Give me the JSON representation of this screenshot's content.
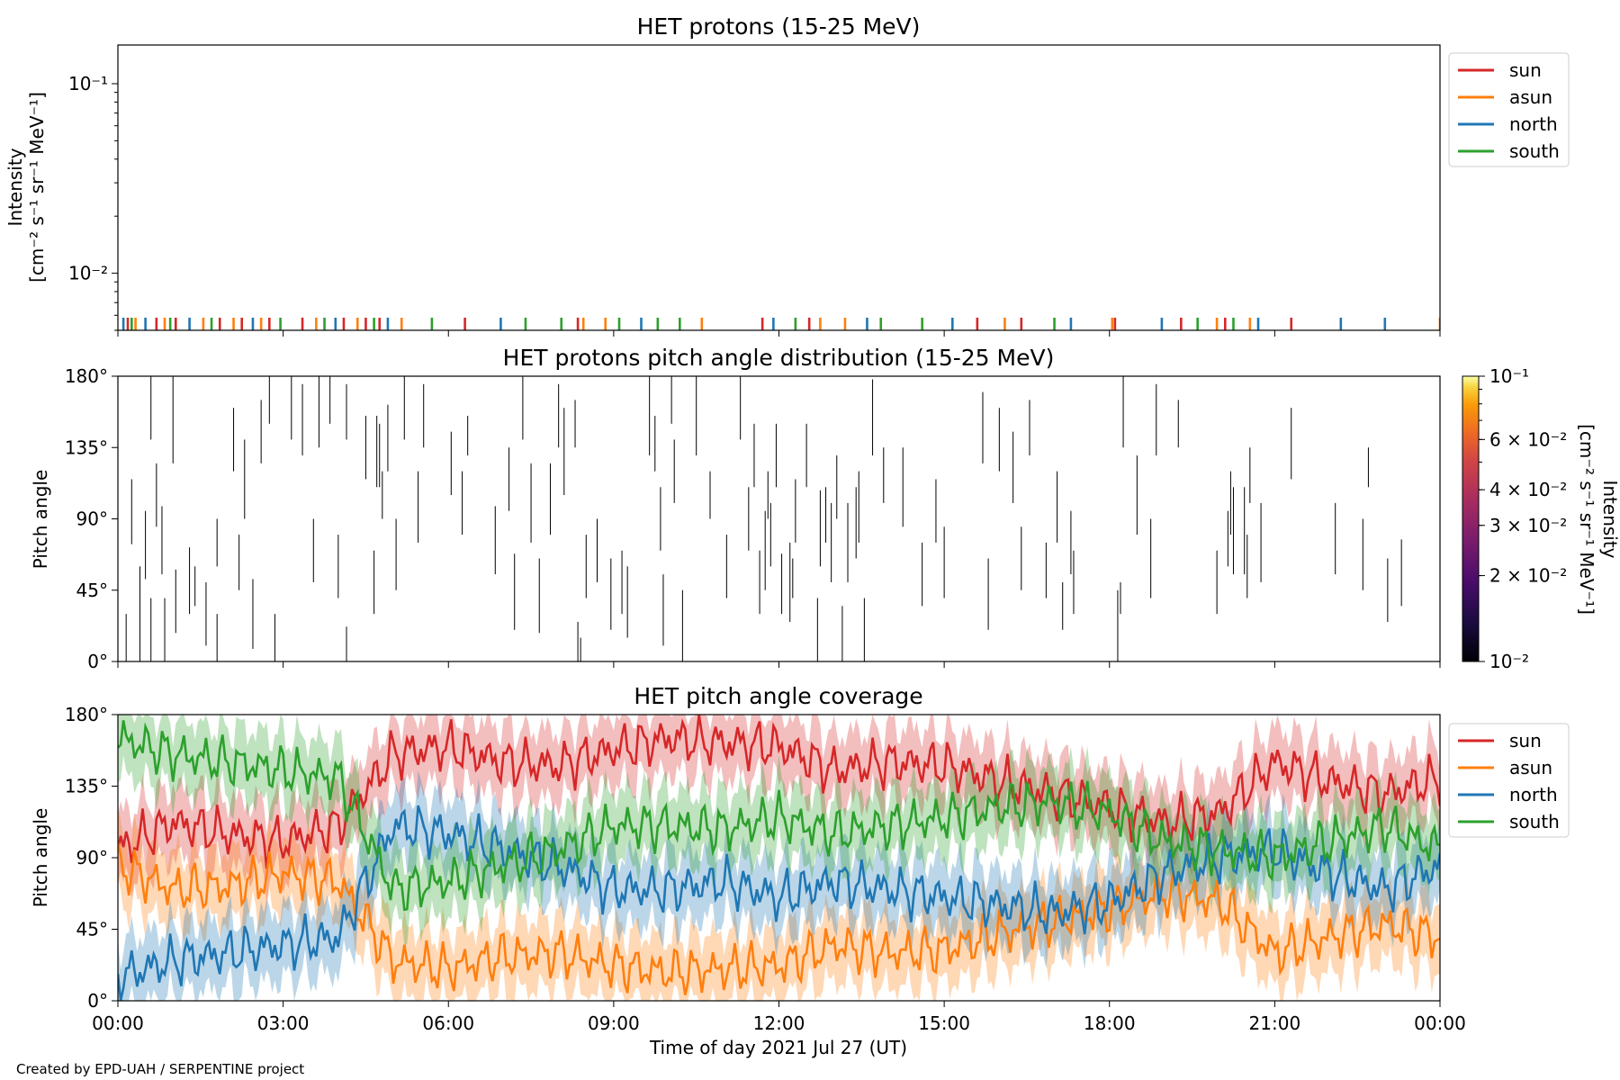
{
  "colors": {
    "sun": "#d62728",
    "asun": "#ff7f0e",
    "north": "#1f77b4",
    "south": "#2ca02c"
  },
  "credit": "Created by EPD-UAH / SERPENTINE project",
  "x_axis": {
    "label": "Time of day 2021 Jul 27 (UT)",
    "ticks": [
      "00:00",
      "03:00",
      "06:00",
      "09:00",
      "12:00",
      "15:00",
      "18:00",
      "21:00",
      "00:00"
    ],
    "range_hours": [
      0,
      24
    ]
  },
  "legend_labels": [
    "sun",
    "asun",
    "north",
    "south"
  ],
  "chart_data": [
    {
      "type": "line",
      "title": "HET protons (15-25 MeV)",
      "ylabel_line1": "Intensity",
      "ylabel_line2": "[cm⁻² s⁻¹ sr⁻¹ MeV⁻¹]",
      "yscale": "log",
      "ylim": [
        0.005,
        0.16
      ],
      "ytick_labels": [
        "10⁻¹",
        "10⁻²"
      ],
      "ytick_values": [
        0.1,
        0.01
      ],
      "legend": "top-right outside",
      "series": [
        {
          "name": "sun",
          "x_hours": [
            0.18,
            0.7,
            1.05,
            1.85,
            2.25,
            2.75,
            3.35,
            4.1,
            4.5,
            4.75,
            6.3,
            8.35,
            11.7,
            12.55,
            15.6,
            16.4,
            18.1,
            19.3,
            20.1,
            21.3
          ]
        },
        {
          "name": "asun",
          "x_hours": [
            0.32,
            0.85,
            1.55,
            2.1,
            2.6,
            3.6,
            4.35,
            5.15,
            8.45,
            8.85,
            10.6,
            12.75,
            13.2,
            16.1,
            18.05,
            19.95,
            20.55,
            24.0
          ]
        },
        {
          "name": "north",
          "x_hours": [
            0.1,
            0.5,
            1.3,
            2.45,
            3.95,
            4.9,
            6.95,
            9.5,
            11.9,
            13.6,
            15.15,
            17.3,
            18.95,
            20.7,
            22.2,
            23.0
          ]
        },
        {
          "name": "south",
          "x_hours": [
            0.25,
            0.95,
            1.7,
            2.95,
            3.75,
            4.65,
            5.7,
            7.4,
            8.05,
            9.1,
            9.8,
            10.2,
            12.3,
            13.85,
            14.6,
            17.0,
            19.6,
            20.25
          ]
        }
      ],
      "y_values_note": "all marks near 0.0055"
    },
    {
      "type": "heatmap",
      "title": "HET protons pitch angle distribution (15-25 MeV)",
      "ylabel": "Pitch angle",
      "ylim": [
        0,
        180
      ],
      "ytick_labels": [
        "180°",
        "135°",
        "90°",
        "45°",
        "0°"
      ],
      "ytick_values": [
        180,
        135,
        90,
        45,
        0
      ],
      "colorbar": {
        "label_line1": "Intensity",
        "label_line2": "[cm⁻² s⁻¹ sr⁻¹ MeV⁻¹]",
        "scale": "log",
        "range": [
          0.01,
          0.1
        ],
        "tick_labels": [
          "10⁻¹",
          "6 × 10⁻²",
          "4 × 10⁻²",
          "3 × 10⁻²",
          "2 × 10⁻²",
          "10⁻²"
        ],
        "tick_values": [
          0.1,
          0.06,
          0.04,
          0.03,
          0.02,
          0.01
        ],
        "colormap": "inferno"
      },
      "segments": [
        {
          "x": 0.15,
          "y0": 0,
          "y1": 30
        },
        {
          "x": 0.25,
          "y0": 74,
          "y1": 115
        },
        {
          "x": 0.4,
          "y0": 0,
          "y1": 60
        },
        {
          "x": 0.5,
          "y0": 52,
          "y1": 95
        },
        {
          "x": 0.6,
          "y0": 140,
          "y1": 180
        },
        {
          "x": 0.6,
          "y0": 0,
          "y1": 40
        },
        {
          "x": 0.7,
          "y0": 85,
          "y1": 125
        },
        {
          "x": 0.8,
          "y0": 55,
          "y1": 98
        },
        {
          "x": 0.85,
          "y0": 0,
          "y1": 40
        },
        {
          "x": 1.0,
          "y0": 125,
          "y1": 180
        },
        {
          "x": 1.05,
          "y0": 18,
          "y1": 58
        },
        {
          "x": 1.3,
          "y0": 30,
          "y1": 72
        },
        {
          "x": 1.4,
          "y0": 35,
          "y1": 60
        },
        {
          "x": 1.6,
          "y0": 10,
          "y1": 50
        },
        {
          "x": 1.8,
          "y0": 60,
          "y1": 90
        },
        {
          "x": 1.8,
          "y0": 0,
          "y1": 30
        },
        {
          "x": 2.1,
          "y0": 120,
          "y1": 160
        },
        {
          "x": 2.2,
          "y0": 45,
          "y1": 80
        },
        {
          "x": 2.3,
          "y0": 90,
          "y1": 140
        },
        {
          "x": 2.45,
          "y0": 8,
          "y1": 52
        },
        {
          "x": 2.6,
          "y0": 125,
          "y1": 165
        },
        {
          "x": 2.75,
          "y0": 150,
          "y1": 180
        },
        {
          "x": 2.85,
          "y0": 0,
          "y1": 30
        },
        {
          "x": 3.15,
          "y0": 140,
          "y1": 180
        },
        {
          "x": 3.35,
          "y0": 130,
          "y1": 175
        },
        {
          "x": 3.55,
          "y0": 50,
          "y1": 90
        },
        {
          "x": 3.65,
          "y0": 135,
          "y1": 180
        },
        {
          "x": 3.85,
          "y0": 150,
          "y1": 180
        },
        {
          "x": 4.0,
          "y0": 40,
          "y1": 80
        },
        {
          "x": 4.15,
          "y0": 0,
          "y1": 22
        },
        {
          "x": 4.15,
          "y0": 140,
          "y1": 175
        },
        {
          "x": 4.5,
          "y0": 115,
          "y1": 155
        },
        {
          "x": 4.65,
          "y0": 30,
          "y1": 70
        },
        {
          "x": 4.7,
          "y0": 110,
          "y1": 155
        },
        {
          "x": 4.75,
          "y0": 110,
          "y1": 150
        },
        {
          "x": 4.8,
          "y0": 90,
          "y1": 120
        },
        {
          "x": 4.9,
          "y0": 120,
          "y1": 162
        },
        {
          "x": 5.05,
          "y0": 45,
          "y1": 90
        },
        {
          "x": 5.2,
          "y0": 140,
          "y1": 180
        },
        {
          "x": 5.45,
          "y0": 75,
          "y1": 120
        },
        {
          "x": 5.55,
          "y0": 135,
          "y1": 175
        },
        {
          "x": 6.05,
          "y0": 105,
          "y1": 145
        },
        {
          "x": 6.25,
          "y0": 80,
          "y1": 120
        },
        {
          "x": 6.35,
          "y0": 130,
          "y1": 155
        },
        {
          "x": 6.85,
          "y0": 55,
          "y1": 98
        },
        {
          "x": 7.1,
          "y0": 95,
          "y1": 135
        },
        {
          "x": 7.2,
          "y0": 20,
          "y1": 68
        },
        {
          "x": 7.35,
          "y0": 140,
          "y1": 180
        },
        {
          "x": 7.5,
          "y0": 75,
          "y1": 125
        },
        {
          "x": 7.65,
          "y0": 18,
          "y1": 65
        },
        {
          "x": 7.85,
          "y0": 80,
          "y1": 125
        },
        {
          "x": 8.0,
          "y0": 135,
          "y1": 175
        },
        {
          "x": 8.1,
          "y0": 105,
          "y1": 160
        },
        {
          "x": 8.3,
          "y0": 135,
          "y1": 165
        },
        {
          "x": 8.35,
          "y0": 0,
          "y1": 25
        },
        {
          "x": 8.4,
          "y0": 0,
          "y1": 15
        },
        {
          "x": 8.5,
          "y0": 40,
          "y1": 80
        },
        {
          "x": 8.7,
          "y0": 50,
          "y1": 90
        },
        {
          "x": 8.95,
          "y0": 20,
          "y1": 65
        },
        {
          "x": 9.15,
          "y0": 30,
          "y1": 70
        },
        {
          "x": 9.25,
          "y0": 15,
          "y1": 60
        },
        {
          "x": 9.65,
          "y0": 130,
          "y1": 180
        },
        {
          "x": 9.75,
          "y0": 120,
          "y1": 155
        },
        {
          "x": 9.85,
          "y0": 70,
          "y1": 110
        },
        {
          "x": 9.9,
          "y0": 10,
          "y1": 55
        },
        {
          "x": 10.05,
          "y0": 150,
          "y1": 180
        },
        {
          "x": 10.1,
          "y0": 100,
          "y1": 140
        },
        {
          "x": 10.25,
          "y0": 0,
          "y1": 45
        },
        {
          "x": 10.5,
          "y0": 130,
          "y1": 180
        },
        {
          "x": 10.75,
          "y0": 90,
          "y1": 120
        },
        {
          "x": 11.05,
          "y0": 40,
          "y1": 80
        },
        {
          "x": 11.3,
          "y0": 140,
          "y1": 180
        },
        {
          "x": 11.45,
          "y0": 70,
          "y1": 110
        },
        {
          "x": 11.55,
          "y0": 110,
          "y1": 150
        },
        {
          "x": 11.65,
          "y0": 30,
          "y1": 70
        },
        {
          "x": 11.75,
          "y0": 45,
          "y1": 95
        },
        {
          "x": 11.8,
          "y0": 90,
          "y1": 120
        },
        {
          "x": 11.85,
          "y0": 60,
          "y1": 100
        },
        {
          "x": 11.95,
          "y0": 110,
          "y1": 150
        },
        {
          "x": 12.05,
          "y0": 30,
          "y1": 68
        },
        {
          "x": 12.2,
          "y0": 25,
          "y1": 75
        },
        {
          "x": 12.25,
          "y0": 40,
          "y1": 65
        },
        {
          "x": 12.3,
          "y0": 75,
          "y1": 115
        },
        {
          "x": 12.5,
          "y0": 110,
          "y1": 150
        },
        {
          "x": 12.7,
          "y0": 0,
          "y1": 40
        },
        {
          "x": 12.75,
          "y0": 60,
          "y1": 108
        },
        {
          "x": 12.85,
          "y0": 75,
          "y1": 110
        },
        {
          "x": 12.95,
          "y0": 50,
          "y1": 100
        },
        {
          "x": 13.05,
          "y0": 90,
          "y1": 130
        },
        {
          "x": 13.15,
          "y0": 0,
          "y1": 35
        },
        {
          "x": 13.25,
          "y0": 50,
          "y1": 100
        },
        {
          "x": 13.4,
          "y0": 65,
          "y1": 110
        },
        {
          "x": 13.45,
          "y0": 75,
          "y1": 120
        },
        {
          "x": 13.55,
          "y0": 0,
          "y1": 40
        },
        {
          "x": 13.7,
          "y0": 130,
          "y1": 178
        },
        {
          "x": 13.9,
          "y0": 100,
          "y1": 135
        },
        {
          "x": 14.25,
          "y0": 85,
          "y1": 135
        },
        {
          "x": 14.6,
          "y0": 35,
          "y1": 75
        },
        {
          "x": 14.85,
          "y0": 75,
          "y1": 115
        },
        {
          "x": 15.0,
          "y0": 40,
          "y1": 85
        },
        {
          "x": 15.7,
          "y0": 125,
          "y1": 170
        },
        {
          "x": 15.8,
          "y0": 20,
          "y1": 65
        },
        {
          "x": 16.0,
          "y0": 120,
          "y1": 160
        },
        {
          "x": 16.25,
          "y0": 100,
          "y1": 145
        },
        {
          "x": 16.4,
          "y0": 45,
          "y1": 85
        },
        {
          "x": 16.55,
          "y0": 130,
          "y1": 165
        },
        {
          "x": 16.85,
          "y0": 40,
          "y1": 75
        },
        {
          "x": 17.05,
          "y0": 75,
          "y1": 120
        },
        {
          "x": 17.15,
          "y0": 20,
          "y1": 50
        },
        {
          "x": 17.3,
          "y0": 55,
          "y1": 95
        },
        {
          "x": 17.35,
          "y0": 30,
          "y1": 70
        },
        {
          "x": 18.15,
          "y0": 0,
          "y1": 45
        },
        {
          "x": 18.2,
          "y0": 30,
          "y1": 50
        },
        {
          "x": 18.25,
          "y0": 135,
          "y1": 180
        },
        {
          "x": 18.5,
          "y0": 80,
          "y1": 130
        },
        {
          "x": 18.75,
          "y0": 40,
          "y1": 90
        },
        {
          "x": 18.85,
          "y0": 130,
          "y1": 175
        },
        {
          "x": 19.25,
          "y0": 135,
          "y1": 165
        },
        {
          "x": 19.95,
          "y0": 30,
          "y1": 70
        },
        {
          "x": 20.15,
          "y0": 60,
          "y1": 95
        },
        {
          "x": 20.2,
          "y0": 80,
          "y1": 120
        },
        {
          "x": 20.25,
          "y0": 55,
          "y1": 110
        },
        {
          "x": 20.45,
          "y0": 55,
          "y1": 110
        },
        {
          "x": 20.5,
          "y0": 40,
          "y1": 80
        },
        {
          "x": 20.55,
          "y0": 100,
          "y1": 135
        },
        {
          "x": 20.75,
          "y0": 50,
          "y1": 100
        },
        {
          "x": 21.3,
          "y0": 115,
          "y1": 160
        },
        {
          "x": 22.1,
          "y0": 55,
          "y1": 100
        },
        {
          "x": 22.6,
          "y0": 45,
          "y1": 90
        },
        {
          "x": 22.7,
          "y0": 110,
          "y1": 135
        },
        {
          "x": 23.05,
          "y0": 25,
          "y1": 65
        },
        {
          "x": 23.3,
          "y0": 35,
          "y1": 77
        }
      ]
    },
    {
      "type": "area",
      "title": "HET pitch angle coverage",
      "ylabel": "Pitch angle",
      "ylim": [
        0,
        180
      ],
      "ytick_labels": [
        "180°",
        "135°",
        "90°",
        "45°",
        "0°"
      ],
      "ytick_values": [
        180,
        135,
        90,
        45,
        0
      ],
      "legend": "top-right outside",
      "band_halfwidth_deg": 22,
      "series": [
        {
          "name": "sun",
          "x_hours": [
            0,
            1,
            2,
            3,
            4,
            5,
            6,
            7,
            8,
            9,
            10,
            11,
            12,
            13,
            14,
            15,
            16,
            17,
            18,
            19,
            20,
            21,
            22,
            23,
            24
          ],
          "values": [
            95,
            112,
            105,
            100,
            110,
            155,
            160,
            150,
            148,
            158,
            165,
            162,
            160,
            145,
            150,
            148,
            138,
            130,
            122,
            112,
            118,
            150,
            138,
            130,
            140
          ]
        },
        {
          "name": "asun",
          "x_hours": [
            0,
            1,
            2,
            3,
            4,
            5,
            6,
            7,
            8,
            9,
            10,
            11,
            12,
            13,
            14,
            15,
            16,
            17,
            18,
            19,
            20,
            21,
            22,
            23,
            24
          ],
          "values": [
            85,
            70,
            72,
            80,
            75,
            25,
            20,
            28,
            30,
            22,
            18,
            20,
            22,
            35,
            30,
            32,
            42,
            50,
            58,
            68,
            62,
            30,
            40,
            48,
            40
          ]
        },
        {
          "name": "north",
          "x_hours": [
            0,
            1,
            2,
            3,
            4,
            5,
            6,
            7,
            8,
            9,
            10,
            11,
            12,
            13,
            14,
            15,
            16,
            17,
            18,
            19,
            20,
            21,
            22,
            23,
            24
          ],
          "values": [
            15,
            25,
            30,
            35,
            40,
            110,
            105,
            95,
            85,
            70,
            70,
            75,
            65,
            75,
            70,
            65,
            60,
            55,
            62,
            80,
            90,
            95,
            80,
            70,
            85
          ]
        },
        {
          "name": "south",
          "x_hours": [
            0,
            1,
            2,
            3,
            4,
            5,
            6,
            7,
            8,
            9,
            10,
            11,
            12,
            13,
            14,
            15,
            16,
            17,
            18,
            19,
            20,
            21,
            22,
            23,
            24
          ],
          "values": [
            165,
            155,
            150,
            145,
            140,
            70,
            75,
            85,
            95,
            110,
            110,
            108,
            115,
            105,
            110,
            115,
            122,
            125,
            118,
            100,
            95,
            90,
            100,
            110,
            95
          ]
        }
      ]
    }
  ]
}
